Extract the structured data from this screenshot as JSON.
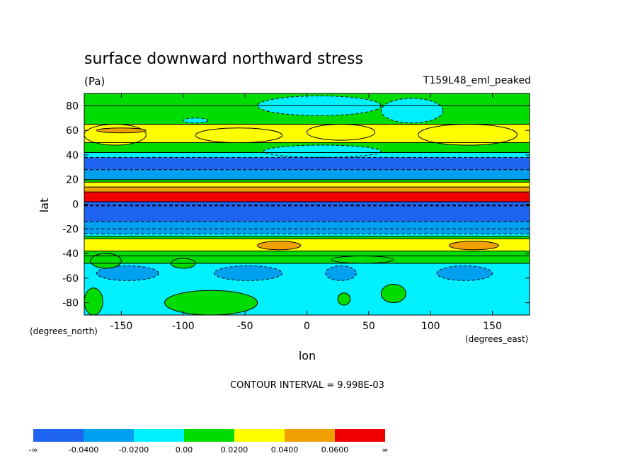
{
  "chart_data": {
    "type": "heatmap",
    "title": "surface downward northward stress",
    "units": "(Pa)",
    "run_label": "T159L48_eml_peaked",
    "xlabel": "lon",
    "ylabel": "lat",
    "x_units": "(degrees_east)",
    "y_units": "(degrees_north)",
    "xlim": [
      -180,
      180
    ],
    "ylim": [
      -90,
      90
    ],
    "x_ticks": [
      -150,
      -100,
      -50,
      0,
      50,
      100,
      150
    ],
    "y_ticks": [
      80,
      60,
      40,
      20,
      0,
      -20,
      -40,
      -60,
      -80
    ],
    "contour_interval_text": "CONTOUR INTERVAL = 9.998E-03",
    "colorbar": {
      "colors": [
        "#1e64f0",
        "#00a0f0",
        "#00f0ff",
        "#00dc00",
        "#ffff00",
        "#f0a000",
        "#f00000"
      ],
      "labels": [
        "-∞",
        "-0.0400",
        "-0.0200",
        "0.00",
        "0.0200",
        "0.0400",
        "0.0600",
        "∞"
      ]
    },
    "zonal_bands": [
      {
        "lat": [
          80,
          90
        ],
        "value": 0.005
      },
      {
        "lat": [
          65,
          80
        ],
        "value": 0.01
      },
      {
        "lat": [
          50,
          65
        ],
        "value": 0.025
      },
      {
        "lat": [
          42,
          50
        ],
        "value": 0.01
      },
      {
        "lat": [
          38,
          42
        ],
        "value": -0.01
      },
      {
        "lat": [
          28,
          38
        ],
        "value": -0.045
      },
      {
        "lat": [
          20,
          28
        ],
        "value": -0.025
      },
      {
        "lat": [
          18,
          20
        ],
        "value": 0.005
      },
      {
        "lat": [
          14,
          18
        ],
        "value": 0.025
      },
      {
        "lat": [
          10,
          14
        ],
        "value": 0.045
      },
      {
        "lat": [
          2,
          10
        ],
        "value": 0.07
      },
      {
        "lat": [
          -1,
          2
        ],
        "value": -0.07
      },
      {
        "lat": [
          -14,
          -1
        ],
        "value": -0.045
      },
      {
        "lat": [
          -20,
          -14
        ],
        "value": -0.035
      },
      {
        "lat": [
          -24,
          -20
        ],
        "value": -0.025
      },
      {
        "lat": [
          -26,
          -24
        ],
        "value": -0.01
      },
      {
        "lat": [
          -28,
          -26
        ],
        "value": 0.01
      },
      {
        "lat": [
          -38,
          -28
        ],
        "value": 0.025
      },
      {
        "lat": [
          -42,
          -38
        ],
        "value": 0.015
      },
      {
        "lat": [
          -48,
          -42
        ],
        "value": 0.005
      },
      {
        "lat": [
          -90,
          -48
        ],
        "value": -0.01
      }
    ],
    "regional_features": [
      {
        "lon": [
          -180,
          -130
        ],
        "lat": [
          48,
          65
        ],
        "value": 0.025
      },
      {
        "lon": [
          -90,
          -20
        ],
        "lat": [
          50,
          62
        ],
        "value": 0.025
      },
      {
        "lon": [
          0,
          55
        ],
        "lat": [
          52,
          65
        ],
        "value": 0.025
      },
      {
        "lon": [
          90,
          170
        ],
        "lat": [
          48,
          65
        ],
        "value": 0.025
      },
      {
        "lon": [
          -170,
          -130
        ],
        "lat": [
          58,
          62
        ],
        "value": 0.045
      },
      {
        "lon": [
          -35,
          60
        ],
        "lat": [
          38,
          48
        ],
        "value": -0.01
      },
      {
        "lon": [
          -40,
          60
        ],
        "lat": [
          72,
          88
        ],
        "value": -0.01
      },
      {
        "lon": [
          60,
          110
        ],
        "lat": [
          66,
          86
        ],
        "value": -0.01
      },
      {
        "lon": [
          -100,
          -80
        ],
        "lat": [
          66,
          70
        ],
        "value": -0.01
      },
      {
        "lon": [
          -170,
          -120
        ],
        "lat": [
          -62,
          -50
        ],
        "value": -0.025
      },
      {
        "lon": [
          -75,
          -20
        ],
        "lat": [
          -62,
          -50
        ],
        "value": -0.025
      },
      {
        "lon": [
          15,
          40
        ],
        "lat": [
          -62,
          -50
        ],
        "value": -0.025
      },
      {
        "lon": [
          105,
          150
        ],
        "lat": [
          -62,
          -50
        ],
        "value": -0.025
      },
      {
        "lon": [
          -40,
          -5
        ],
        "lat": [
          -37,
          -30
        ],
        "value": 0.045
      },
      {
        "lon": [
          115,
          155
        ],
        "lat": [
          -37,
          -30
        ],
        "value": 0.045
      },
      {
        "lon": [
          -180,
          -165
        ],
        "lat": [
          -90,
          -68
        ],
        "value": 0.005
      },
      {
        "lon": [
          -115,
          -40
        ],
        "lat": [
          -90,
          -70
        ],
        "value": 0.005
      },
      {
        "lon": [
          60,
          80
        ],
        "lat": [
          -80,
          -65
        ],
        "value": 0.005
      },
      {
        "lon": [
          25,
          35
        ],
        "lat": [
          -82,
          -72
        ],
        "value": 0.005
      },
      {
        "lon": [
          -175,
          -150
        ],
        "lat": [
          -52,
          -40
        ],
        "value": 0.005
      },
      {
        "lon": [
          -110,
          -90
        ],
        "lat": [
          -52,
          -44
        ],
        "value": 0.005
      },
      {
        "lon": [
          20,
          70
        ],
        "lat": [
          -48,
          -42
        ],
        "value": 0.005
      }
    ]
  }
}
